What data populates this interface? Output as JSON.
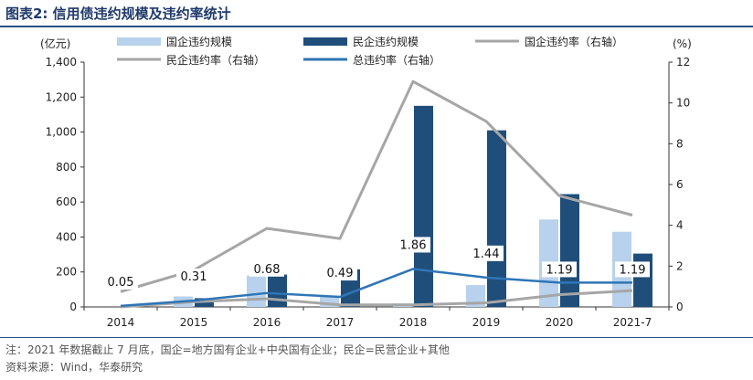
{
  "title": "图表2:   信用债违约规模及违约率统计",
  "notes": {
    "line1": "注：2021 年数据截止 7 月底，国企=地方国有企业+中央国有企业；民企=民营企业+其他",
    "line2": "资料来源：Wind，华泰研究"
  },
  "colors": {
    "soe_bar": "#b8d1ec",
    "pe_bar": "#1f4e7a",
    "soe_rate": "#a6a6a6",
    "pe_rate": "#a6a6a6",
    "total_rate": "#2e75b6"
  },
  "chart_data": {
    "type": "bar",
    "categories": [
      "2014",
      "2015",
      "2016",
      "2017",
      "2018",
      "2019",
      "2020",
      "2021-7"
    ],
    "left_axis": {
      "unit": "(亿元)",
      "range": [
        0,
        1400
      ],
      "ticks": [
        0,
        200,
        400,
        600,
        800,
        1000,
        1200,
        1400
      ],
      "tick_labels": [
        "0",
        "200",
        "400",
        "600",
        "800",
        "1,000",
        "1,200",
        "1,400"
      ]
    },
    "right_axis": {
      "unit": "(%)",
      "range": [
        0,
        12
      ],
      "ticks": [
        0,
        2,
        4,
        6,
        8,
        10,
        12
      ],
      "tick_labels": [
        "0",
        "2",
        "4",
        "6",
        "8",
        "10",
        "12"
      ]
    },
    "series": [
      {
        "name": "国企违约规模",
        "kind": "bar",
        "axis": "left",
        "values": [
          0,
          60,
          180,
          60,
          20,
          125,
          500,
          430
        ]
      },
      {
        "name": "民企违约规模",
        "kind": "bar",
        "axis": "left",
        "values": [
          0,
          50,
          185,
          215,
          1150,
          1010,
          645,
          305
        ]
      },
      {
        "name": "国企违约率（右轴）",
        "kind": "line",
        "axis": "right",
        "values": [
          0.0,
          0.25,
          0.4,
          0.1,
          0.1,
          0.2,
          0.6,
          0.8
        ]
      },
      {
        "name": "民企违约率（右轴）",
        "kind": "line",
        "axis": "right",
        "values": [
          0.75,
          1.8,
          3.85,
          3.35,
          11.05,
          9.1,
          5.45,
          4.5
        ]
      },
      {
        "name": "总违约率（右轴）",
        "kind": "line",
        "axis": "right",
        "values": [
          0.05,
          0.31,
          0.68,
          0.49,
          1.86,
          1.44,
          1.19,
          1.19
        ],
        "labels": [
          "0.05",
          "0.31",
          "0.68",
          "0.49",
          "1.86",
          "1.44",
          "1.19",
          "1.19"
        ]
      }
    ],
    "grid": false,
    "legend_position": "top"
  }
}
